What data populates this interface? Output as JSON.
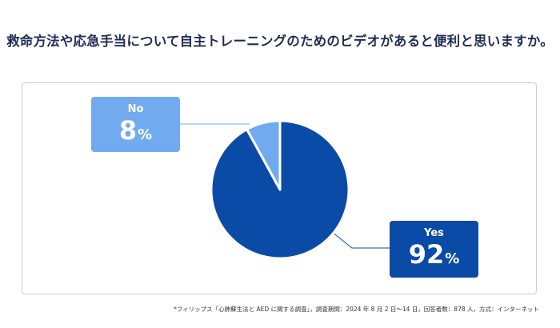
{
  "chart_data": {
    "type": "pie",
    "title": "救命方法や応急手当について自主トレーニングのためのビデオがあると便利と思いますか。",
    "slices": [
      {
        "label": "Yes",
        "value": 92,
        "unit": "%",
        "color": "#0a4ba7"
      },
      {
        "label": "No",
        "value": 8,
        "unit": "%",
        "color": "#72aaf0"
      }
    ]
  },
  "footnote": "*フィリップス「心肺蘇生法と AED に関する調査」，調査期間：2024 年 8 月 2 日～14 日，回答者数：878 人，方式：インターネット"
}
